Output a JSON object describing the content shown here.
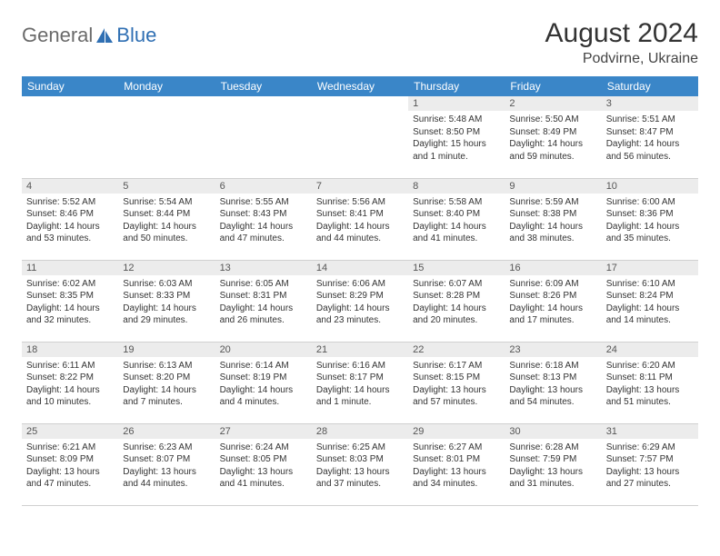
{
  "brand": {
    "part1": "General",
    "part2": "Blue"
  },
  "title": "August 2024",
  "location": "Podvirne, Ukraine",
  "theme": {
    "header_bg": "#3a86c8",
    "header_fg": "#ffffff",
    "daynum_bg": "#ececec",
    "daynum_fg": "#555555",
    "text_color": "#333333",
    "rule_color": "#d0d0d0",
    "logo_gray": "#6a6a6a",
    "logo_blue": "#2f6fb3"
  },
  "weekdays": [
    "Sunday",
    "Monday",
    "Tuesday",
    "Wednesday",
    "Thursday",
    "Friday",
    "Saturday"
  ],
  "weeks": [
    [
      null,
      null,
      null,
      null,
      {
        "n": "1",
        "sr": "5:48 AM",
        "ss": "8:50 PM",
        "dl": "15 hours and 1 minute."
      },
      {
        "n": "2",
        "sr": "5:50 AM",
        "ss": "8:49 PM",
        "dl": "14 hours and 59 minutes."
      },
      {
        "n": "3",
        "sr": "5:51 AM",
        "ss": "8:47 PM",
        "dl": "14 hours and 56 minutes."
      }
    ],
    [
      {
        "n": "4",
        "sr": "5:52 AM",
        "ss": "8:46 PM",
        "dl": "14 hours and 53 minutes."
      },
      {
        "n": "5",
        "sr": "5:54 AM",
        "ss": "8:44 PM",
        "dl": "14 hours and 50 minutes."
      },
      {
        "n": "6",
        "sr": "5:55 AM",
        "ss": "8:43 PM",
        "dl": "14 hours and 47 minutes."
      },
      {
        "n": "7",
        "sr": "5:56 AM",
        "ss": "8:41 PM",
        "dl": "14 hours and 44 minutes."
      },
      {
        "n": "8",
        "sr": "5:58 AM",
        "ss": "8:40 PM",
        "dl": "14 hours and 41 minutes."
      },
      {
        "n": "9",
        "sr": "5:59 AM",
        "ss": "8:38 PM",
        "dl": "14 hours and 38 minutes."
      },
      {
        "n": "10",
        "sr": "6:00 AM",
        "ss": "8:36 PM",
        "dl": "14 hours and 35 minutes."
      }
    ],
    [
      {
        "n": "11",
        "sr": "6:02 AM",
        "ss": "8:35 PM",
        "dl": "14 hours and 32 minutes."
      },
      {
        "n": "12",
        "sr": "6:03 AM",
        "ss": "8:33 PM",
        "dl": "14 hours and 29 minutes."
      },
      {
        "n": "13",
        "sr": "6:05 AM",
        "ss": "8:31 PM",
        "dl": "14 hours and 26 minutes."
      },
      {
        "n": "14",
        "sr": "6:06 AM",
        "ss": "8:29 PM",
        "dl": "14 hours and 23 minutes."
      },
      {
        "n": "15",
        "sr": "6:07 AM",
        "ss": "8:28 PM",
        "dl": "14 hours and 20 minutes."
      },
      {
        "n": "16",
        "sr": "6:09 AM",
        "ss": "8:26 PM",
        "dl": "14 hours and 17 minutes."
      },
      {
        "n": "17",
        "sr": "6:10 AM",
        "ss": "8:24 PM",
        "dl": "14 hours and 14 minutes."
      }
    ],
    [
      {
        "n": "18",
        "sr": "6:11 AM",
        "ss": "8:22 PM",
        "dl": "14 hours and 10 minutes."
      },
      {
        "n": "19",
        "sr": "6:13 AM",
        "ss": "8:20 PM",
        "dl": "14 hours and 7 minutes."
      },
      {
        "n": "20",
        "sr": "6:14 AM",
        "ss": "8:19 PM",
        "dl": "14 hours and 4 minutes."
      },
      {
        "n": "21",
        "sr": "6:16 AM",
        "ss": "8:17 PM",
        "dl": "14 hours and 1 minute."
      },
      {
        "n": "22",
        "sr": "6:17 AM",
        "ss": "8:15 PM",
        "dl": "13 hours and 57 minutes."
      },
      {
        "n": "23",
        "sr": "6:18 AM",
        "ss": "8:13 PM",
        "dl": "13 hours and 54 minutes."
      },
      {
        "n": "24",
        "sr": "6:20 AM",
        "ss": "8:11 PM",
        "dl": "13 hours and 51 minutes."
      }
    ],
    [
      {
        "n": "25",
        "sr": "6:21 AM",
        "ss": "8:09 PM",
        "dl": "13 hours and 47 minutes."
      },
      {
        "n": "26",
        "sr": "6:23 AM",
        "ss": "8:07 PM",
        "dl": "13 hours and 44 minutes."
      },
      {
        "n": "27",
        "sr": "6:24 AM",
        "ss": "8:05 PM",
        "dl": "13 hours and 41 minutes."
      },
      {
        "n": "28",
        "sr": "6:25 AM",
        "ss": "8:03 PM",
        "dl": "13 hours and 37 minutes."
      },
      {
        "n": "29",
        "sr": "6:27 AM",
        "ss": "8:01 PM",
        "dl": "13 hours and 34 minutes."
      },
      {
        "n": "30",
        "sr": "6:28 AM",
        "ss": "7:59 PM",
        "dl": "13 hours and 31 minutes."
      },
      {
        "n": "31",
        "sr": "6:29 AM",
        "ss": "7:57 PM",
        "dl": "13 hours and 27 minutes."
      }
    ]
  ],
  "labels": {
    "sunrise": "Sunrise:",
    "sunset": "Sunset:",
    "daylight": "Daylight:"
  }
}
